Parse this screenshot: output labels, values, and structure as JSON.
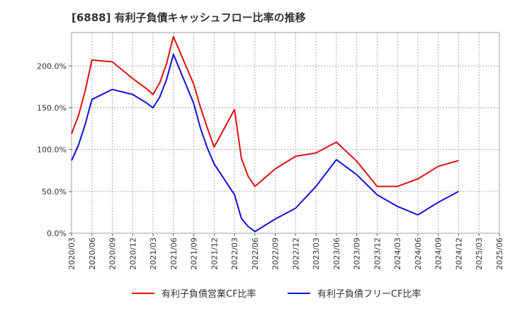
{
  "chart_data": {
    "type": "line",
    "title": "[6888]  有利子負債キャッシュフロー比率の推移",
    "xlabel": "",
    "ylabel": "",
    "ylim": [
      0,
      0.5
    ],
    "grid": true,
    "legend_position": "bottom",
    "x_ticks": [
      "2020/03",
      "2020/06",
      "2020/09",
      "2020/12",
      "2021/03",
      "2021/06",
      "2021/09",
      "2021/12",
      "2022/03",
      "2022/06",
      "2022/09",
      "2022/12",
      "2023/03",
      "2023/06",
      "2023/09",
      "2023/12",
      "2024/03",
      "2024/06",
      "2024/09",
      "2024/12",
      "2025/03",
      "2025/06"
    ],
    "y_ticks": [
      "0.0%",
      "50.0%",
      "100.0%",
      "150.0%",
      "200.0%"
    ],
    "y_tick_values": [
      0,
      50,
      100,
      150,
      200
    ],
    "y_range": [
      0,
      240
    ],
    "x_range": [
      "2020-03",
      "2025-06"
    ],
    "series": [
      {
        "name": "有利子負債営業CF比率",
        "color": "#dd1111",
        "points": [
          [
            "2020-03",
            119
          ],
          [
            "2020-04",
            140
          ],
          [
            "2020-05",
            170
          ],
          [
            "2020-06",
            207
          ],
          [
            "2020-09",
            205
          ],
          [
            "2020-12",
            185
          ],
          [
            "2021-02",
            173
          ],
          [
            "2021-03",
            166
          ],
          [
            "2021-04",
            180
          ],
          [
            "2021-05",
            203
          ],
          [
            "2021-06",
            235
          ],
          [
            "2021-09",
            178
          ],
          [
            "2021-10",
            150
          ],
          [
            "2021-11",
            126
          ],
          [
            "2021-12",
            103
          ],
          [
            "2022-03",
            148
          ],
          [
            "2022-04",
            90
          ],
          [
            "2022-05",
            68
          ],
          [
            "2022-06",
            56
          ],
          [
            "2022-09",
            77
          ],
          [
            "2022-12",
            92
          ],
          [
            "2023-03",
            96
          ],
          [
            "2023-06",
            109
          ],
          [
            "2023-09",
            86
          ],
          [
            "2023-12",
            56
          ],
          [
            "2024-03",
            56
          ],
          [
            "2024-06",
            65
          ],
          [
            "2024-09",
            80
          ],
          [
            "2024-12",
            87
          ]
        ]
      },
      {
        "name": "有利子負債フリーCF比率",
        "color": "#1111dd",
        "points": [
          [
            "2020-03",
            87
          ],
          [
            "2020-04",
            105
          ],
          [
            "2020-05",
            130
          ],
          [
            "2020-06",
            160
          ],
          [
            "2020-09",
            172
          ],
          [
            "2020-12",
            166
          ],
          [
            "2021-02",
            156
          ],
          [
            "2021-03",
            150
          ],
          [
            "2021-04",
            163
          ],
          [
            "2021-05",
            184
          ],
          [
            "2021-06",
            214
          ],
          [
            "2021-09",
            155
          ],
          [
            "2021-10",
            125
          ],
          [
            "2021-11",
            102
          ],
          [
            "2021-12",
            83
          ],
          [
            "2022-03",
            46
          ],
          [
            "2022-04",
            18
          ],
          [
            "2022-05",
            8
          ],
          [
            "2022-06",
            2
          ],
          [
            "2022-09",
            17
          ],
          [
            "2022-12",
            30
          ],
          [
            "2023-03",
            56
          ],
          [
            "2023-06",
            88
          ],
          [
            "2023-09",
            70
          ],
          [
            "2023-12",
            46
          ],
          [
            "2024-03",
            32
          ],
          [
            "2024-06",
            22
          ],
          [
            "2024-09",
            37
          ],
          [
            "2024-12",
            50
          ]
        ]
      }
    ]
  }
}
